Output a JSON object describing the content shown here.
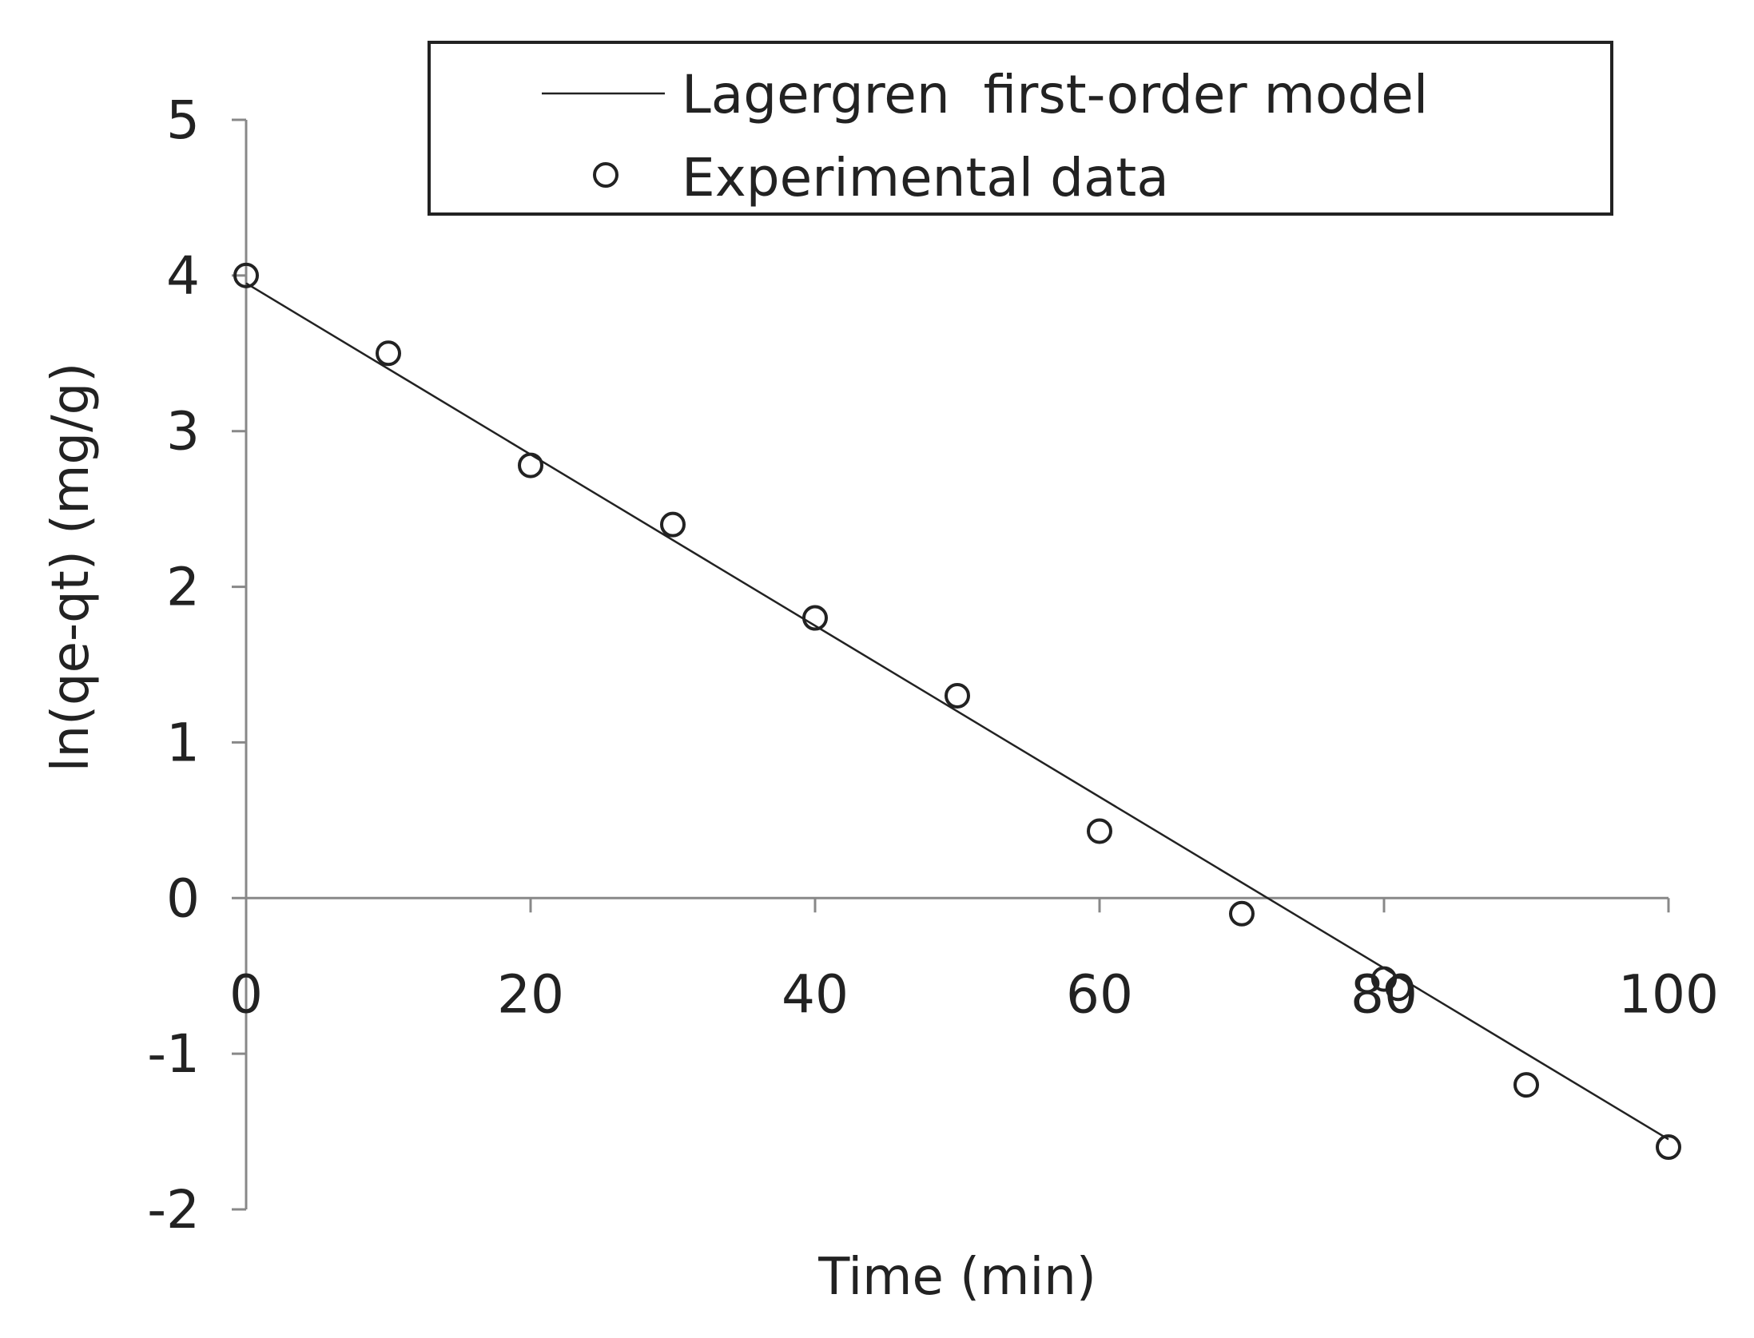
{
  "chart_data": {
    "type": "scatter",
    "xlabel": "Time (min)",
    "ylabel": "ln(qe-qt) (mg/g)",
    "xlim": [
      0,
      100
    ],
    "ylim": [
      -2,
      5
    ],
    "x_ticks": [
      0,
      20,
      40,
      60,
      80,
      100
    ],
    "y_ticks": [
      -2,
      -1,
      0,
      1,
      2,
      3,
      4,
      5
    ],
    "x_tick_labels": [
      "0",
      "20",
      "40",
      "60",
      "80",
      "100"
    ],
    "y_tick_labels": [
      "-2",
      "-1",
      "0",
      "1",
      "2",
      "3",
      "4",
      "5"
    ],
    "grid": false,
    "legend_position": "top-right",
    "series": [
      {
        "name": "Lagergren  first-order model",
        "kind": "line",
        "color": "#222222",
        "x": [
          0,
          100
        ],
        "y": [
          3.95,
          -1.55
        ]
      },
      {
        "name": "Experimental data",
        "kind": "scatter",
        "marker": "open-circle",
        "color": "#222222",
        "x": [
          0,
          10,
          20,
          30,
          40,
          50,
          60,
          70,
          80,
          81,
          90,
          100
        ],
        "y": [
          4.0,
          3.5,
          2.78,
          2.4,
          1.8,
          1.3,
          0.43,
          -0.1,
          -0.52,
          -0.58,
          -1.2,
          -1.6
        ]
      }
    ]
  }
}
